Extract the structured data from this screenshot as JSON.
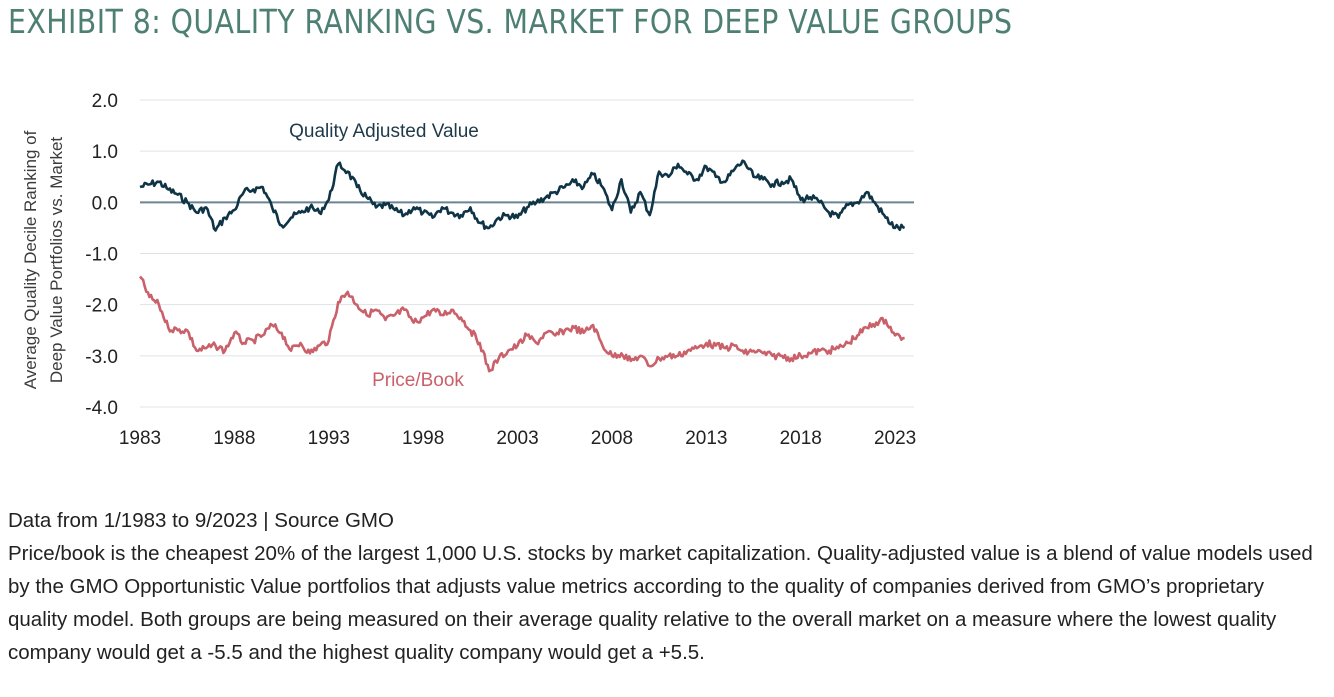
{
  "title": "EXHIBIT 8: QUALITY RANKING VS. MARKET FOR DEEP VALUE GROUPS",
  "footer": {
    "source": "Data from 1/1983 to 9/2023 | Source GMO",
    "description": "Price/book is the cheapest 20% of the largest 1,000 U.S. stocks by market capitalization. Quality-adjusted value is a blend of value models used by the GMO Opportunistic Value portfolios that adjusts value metrics according to the quality of companies derived from GMO’s proprietary quality model. Both groups are being measured on their average quality relative to the overall market on a measure where the lowest quality company would get a -5.5 and the highest quality company would get a +5.5."
  },
  "colors": {
    "title": "#4e7f73",
    "quality_line": "#0f3446",
    "price_book_line": "#c9606a",
    "zero_line": "#6b8590",
    "grid": "#dfe3e6"
  },
  "chart_data": {
    "type": "line",
    "ylabel_lines": [
      "Average Quality Decile Ranking of",
      "Deep Value Portfolios vs. Market"
    ],
    "xlabel": "",
    "xlim": [
      1983.0,
      2024.0
    ],
    "ylim": [
      -4.0,
      2.0
    ],
    "yticks": [
      2.0,
      1.0,
      0.0,
      -1.0,
      -2.0,
      -3.0,
      -4.0
    ],
    "ytick_labels": [
      "2.0",
      "1.0",
      "0.0",
      "-1.0",
      "-2.0",
      "-3.0",
      "-4.0"
    ],
    "xticks": [
      1983,
      1988,
      1993,
      1998,
      2003,
      2008,
      2013,
      2018,
      2023
    ],
    "xtick_labels": [
      "1983",
      "1988",
      "1993",
      "1998",
      "2003",
      "2008",
      "2013",
      "2018",
      "2023"
    ],
    "grid": true,
    "series": [
      {
        "name": "Quality Adjusted Value",
        "x": [
          1983.0,
          1983.5,
          1984.0,
          1984.5,
          1985.0,
          1985.5,
          1986.0,
          1986.5,
          1987.0,
          1987.5,
          1988.0,
          1988.5,
          1989.0,
          1989.5,
          1990.0,
          1990.5,
          1991.0,
          1991.5,
          1992.0,
          1992.5,
          1993.0,
          1993.5,
          1994.0,
          1994.5,
          1995.0,
          1995.5,
          1996.0,
          1996.5,
          1997.0,
          1997.5,
          1998.0,
          1998.5,
          1999.0,
          1999.5,
          2000.0,
          2000.5,
          2001.0,
          2001.5,
          2002.0,
          2002.5,
          2003.0,
          2003.5,
          2004.0,
          2004.5,
          2005.0,
          2005.5,
          2006.0,
          2006.5,
          2007.0,
          2007.5,
          2008.0,
          2008.5,
          2009.0,
          2009.5,
          2010.0,
          2010.5,
          2011.0,
          2011.5,
          2012.0,
          2012.5,
          2013.0,
          2013.5,
          2014.0,
          2014.5,
          2015.0,
          2015.5,
          2016.0,
          2016.5,
          2017.0,
          2017.5,
          2018.0,
          2018.5,
          2019.0,
          2019.5,
          2020.0,
          2020.5,
          2021.0,
          2021.5,
          2022.0,
          2022.5,
          2023.0,
          2023.5
        ],
        "y": [
          0.3,
          0.35,
          0.4,
          0.25,
          0.15,
          0.0,
          -0.2,
          -0.1,
          -0.55,
          -0.3,
          -0.15,
          0.2,
          0.25,
          0.3,
          -0.1,
          -0.45,
          -0.3,
          -0.2,
          -0.1,
          -0.2,
          0.05,
          0.75,
          0.6,
          0.3,
          0.1,
          -0.1,
          -0.05,
          -0.15,
          -0.25,
          -0.1,
          -0.2,
          -0.3,
          -0.1,
          -0.2,
          -0.25,
          -0.1,
          -0.4,
          -0.5,
          -0.3,
          -0.25,
          -0.3,
          -0.1,
          0.0,
          0.1,
          0.2,
          0.3,
          0.4,
          0.3,
          0.55,
          0.3,
          -0.15,
          0.45,
          -0.2,
          0.2,
          -0.25,
          0.6,
          0.5,
          0.75,
          0.55,
          0.45,
          0.7,
          0.5,
          0.4,
          0.65,
          0.8,
          0.5,
          0.45,
          0.35,
          0.4,
          0.45,
          0.05,
          0.1,
          0.0,
          -0.2,
          -0.3,
          -0.05,
          0.0,
          0.2,
          -0.05,
          -0.3,
          -0.5,
          -0.5
        ]
      },
      {
        "name": "Price/Book",
        "x": [
          1983.0,
          1983.5,
          1984.0,
          1984.5,
          1985.0,
          1985.5,
          1986.0,
          1986.5,
          1987.0,
          1987.5,
          1988.0,
          1988.5,
          1989.0,
          1989.5,
          1990.0,
          1990.5,
          1991.0,
          1991.5,
          1992.0,
          1992.5,
          1993.0,
          1993.5,
          1994.0,
          1994.5,
          1995.0,
          1995.5,
          1996.0,
          1996.5,
          1997.0,
          1997.5,
          1998.0,
          1998.5,
          1999.0,
          1999.5,
          2000.0,
          2000.5,
          2001.0,
          2001.5,
          2002.0,
          2002.5,
          2003.0,
          2003.5,
          2004.0,
          2004.5,
          2005.0,
          2005.5,
          2006.0,
          2006.5,
          2007.0,
          2007.5,
          2008.0,
          2008.5,
          2009.0,
          2009.5,
          2010.0,
          2010.5,
          2011.0,
          2011.5,
          2012.0,
          2012.5,
          2013.0,
          2013.5,
          2014.0,
          2014.5,
          2015.0,
          2015.5,
          2016.0,
          2016.5,
          2017.0,
          2017.5,
          2018.0,
          2018.5,
          2019.0,
          2019.5,
          2020.0,
          2020.5,
          2021.0,
          2021.5,
          2022.0,
          2022.5,
          2023.0,
          2023.5
        ],
        "y": [
          -1.45,
          -1.85,
          -2.0,
          -2.45,
          -2.5,
          -2.5,
          -2.9,
          -2.85,
          -2.8,
          -2.9,
          -2.55,
          -2.75,
          -2.7,
          -2.6,
          -2.4,
          -2.55,
          -2.9,
          -2.75,
          -2.95,
          -2.8,
          -2.7,
          -1.95,
          -1.75,
          -2.0,
          -2.2,
          -2.1,
          -2.3,
          -2.2,
          -2.1,
          -2.35,
          -2.25,
          -2.1,
          -2.2,
          -2.1,
          -2.25,
          -2.5,
          -2.75,
          -3.3,
          -3.05,
          -2.9,
          -2.8,
          -2.6,
          -2.75,
          -2.55,
          -2.6,
          -2.5,
          -2.45,
          -2.55,
          -2.4,
          -2.8,
          -3.0,
          -2.95,
          -3.1,
          -3.0,
          -3.2,
          -3.05,
          -3.0,
          -3.0,
          -2.9,
          -2.85,
          -2.75,
          -2.8,
          -2.85,
          -2.8,
          -2.95,
          -2.9,
          -2.95,
          -3.0,
          -3.0,
          -3.05,
          -3.0,
          -2.95,
          -2.9,
          -2.9,
          -2.85,
          -2.75,
          -2.6,
          -2.45,
          -2.35,
          -2.3,
          -2.6,
          -2.65
        ]
      }
    ],
    "annotations": [
      "Quality Adjusted Value",
      "Price/Book"
    ]
  }
}
